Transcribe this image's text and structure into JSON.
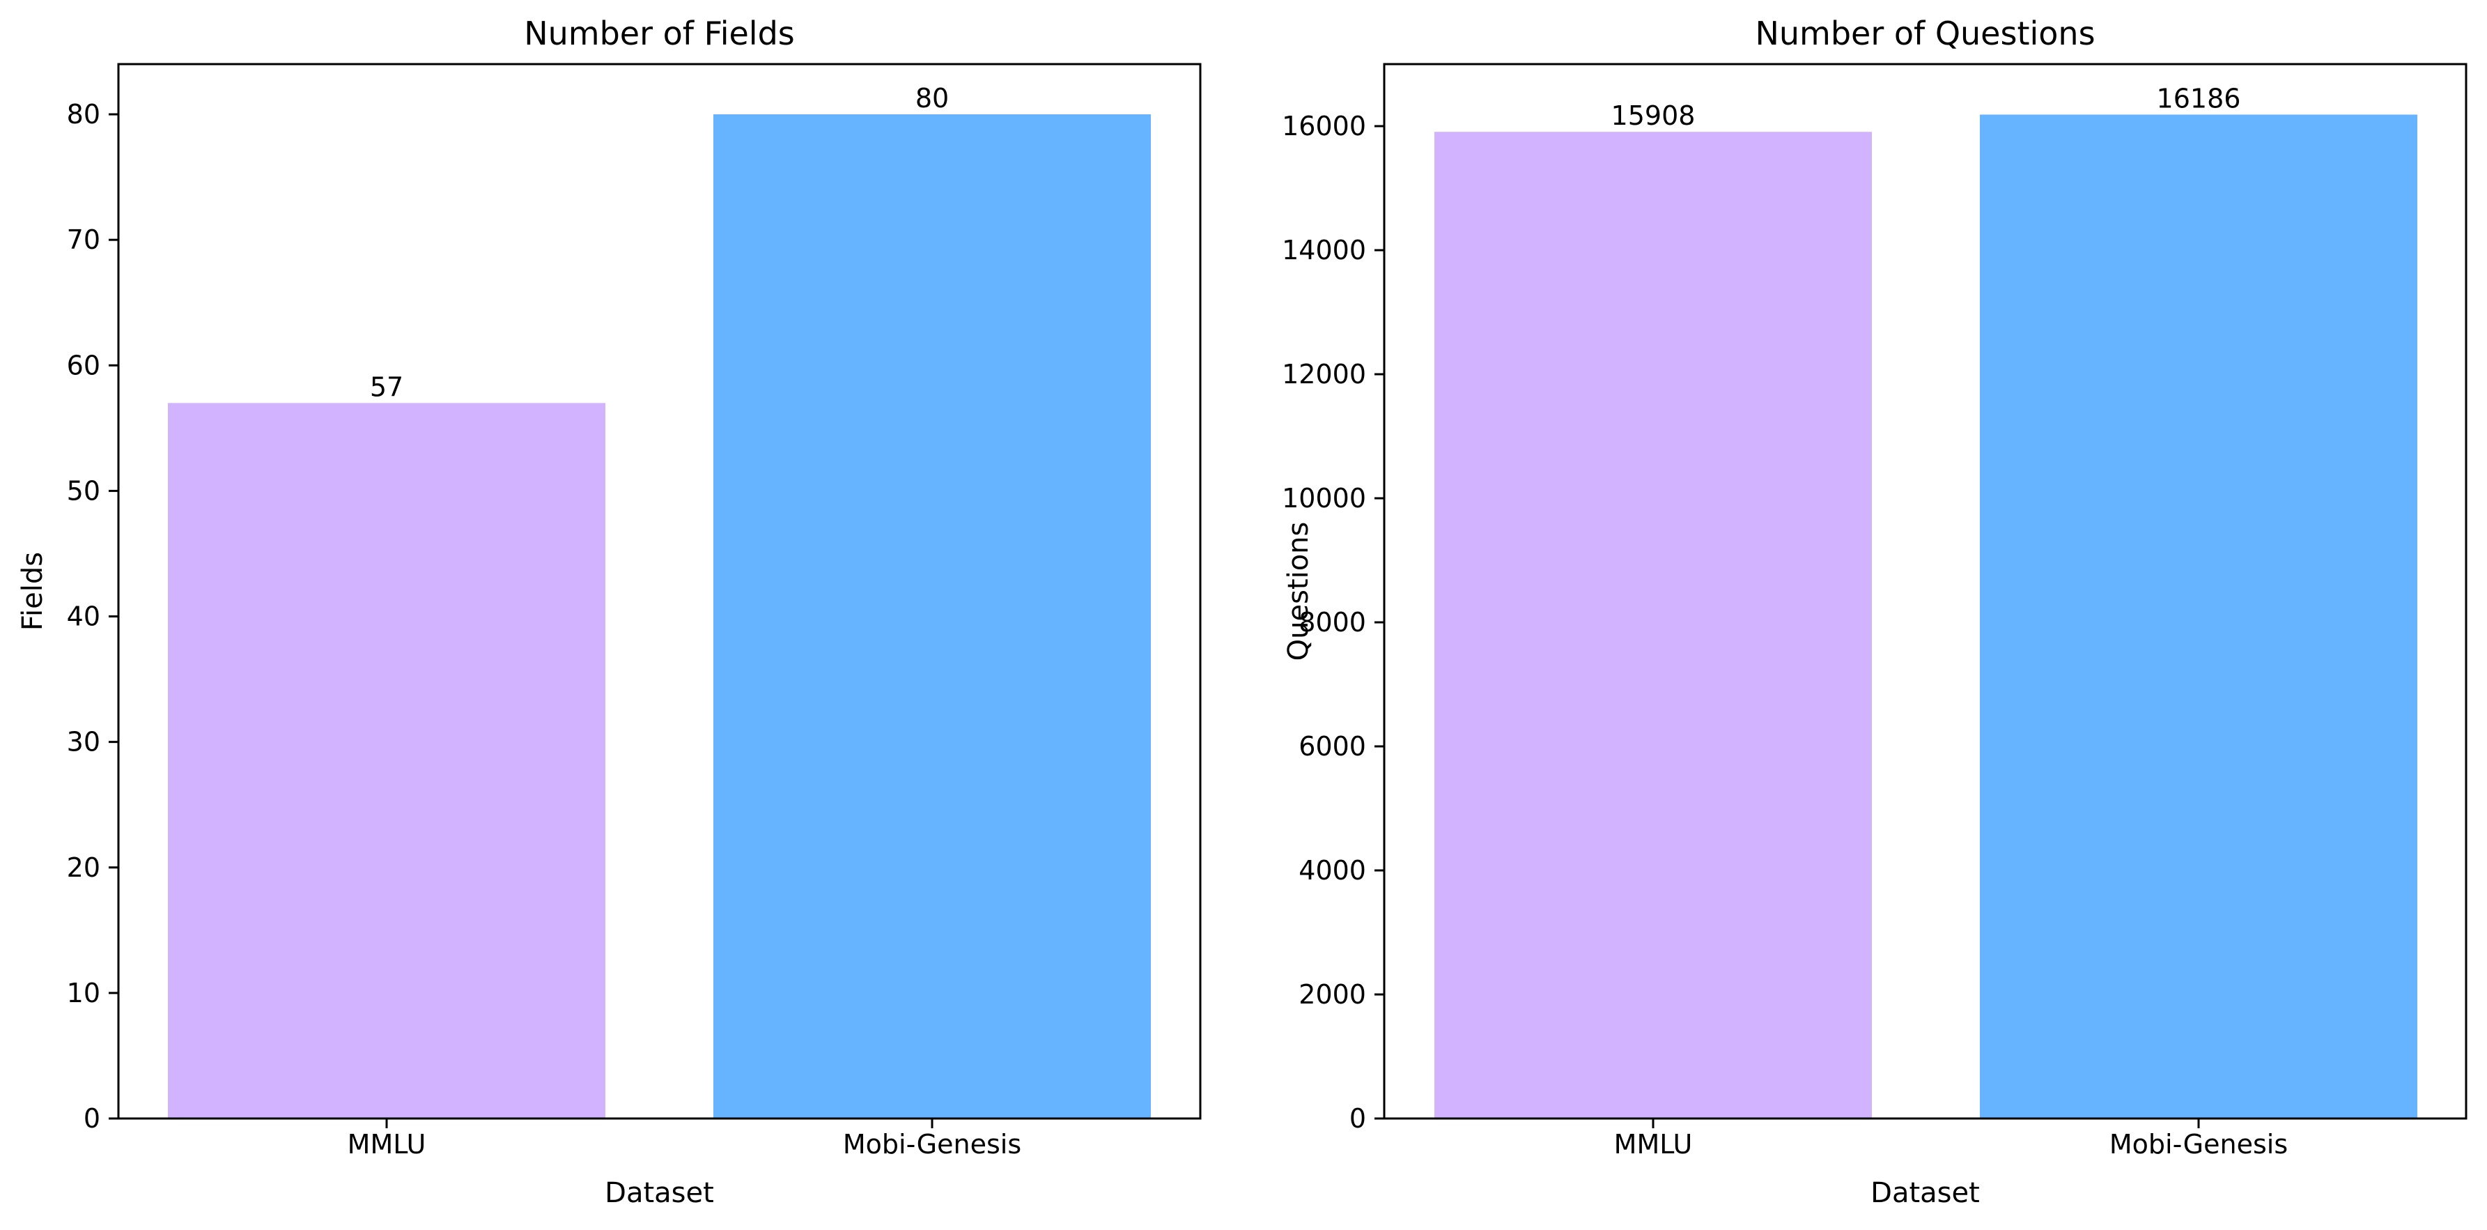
{
  "chart_data": [
    {
      "type": "bar",
      "title": "Number of Fields",
      "xlabel": "Dataset",
      "ylabel": "Fields",
      "categories": [
        "MMLU",
        "Mobi-Genesis"
      ],
      "values": [
        57,
        80
      ],
      "data_labels": [
        "57",
        "80"
      ],
      "colors": [
        "#d1b3ff",
        "#66b3ff"
      ],
      "ylim": [
        0,
        84
      ],
      "yticks": [
        0,
        10,
        20,
        30,
        40,
        50,
        60,
        70,
        80
      ],
      "grid": false,
      "legend": "none"
    },
    {
      "type": "bar",
      "title": "Number of Questions",
      "xlabel": "Dataset",
      "ylabel": "Questions",
      "categories": [
        "MMLU",
        "Mobi-Genesis"
      ],
      "values": [
        15908,
        16186
      ],
      "data_labels": [
        "15908",
        "16186"
      ],
      "colors": [
        "#d1b3ff",
        "#66b3ff"
      ],
      "ylim": [
        0,
        17000
      ],
      "yticks": [
        0,
        2000,
        4000,
        6000,
        8000,
        10000,
        12000,
        14000,
        16000
      ],
      "grid": false,
      "legend": "none"
    }
  ]
}
